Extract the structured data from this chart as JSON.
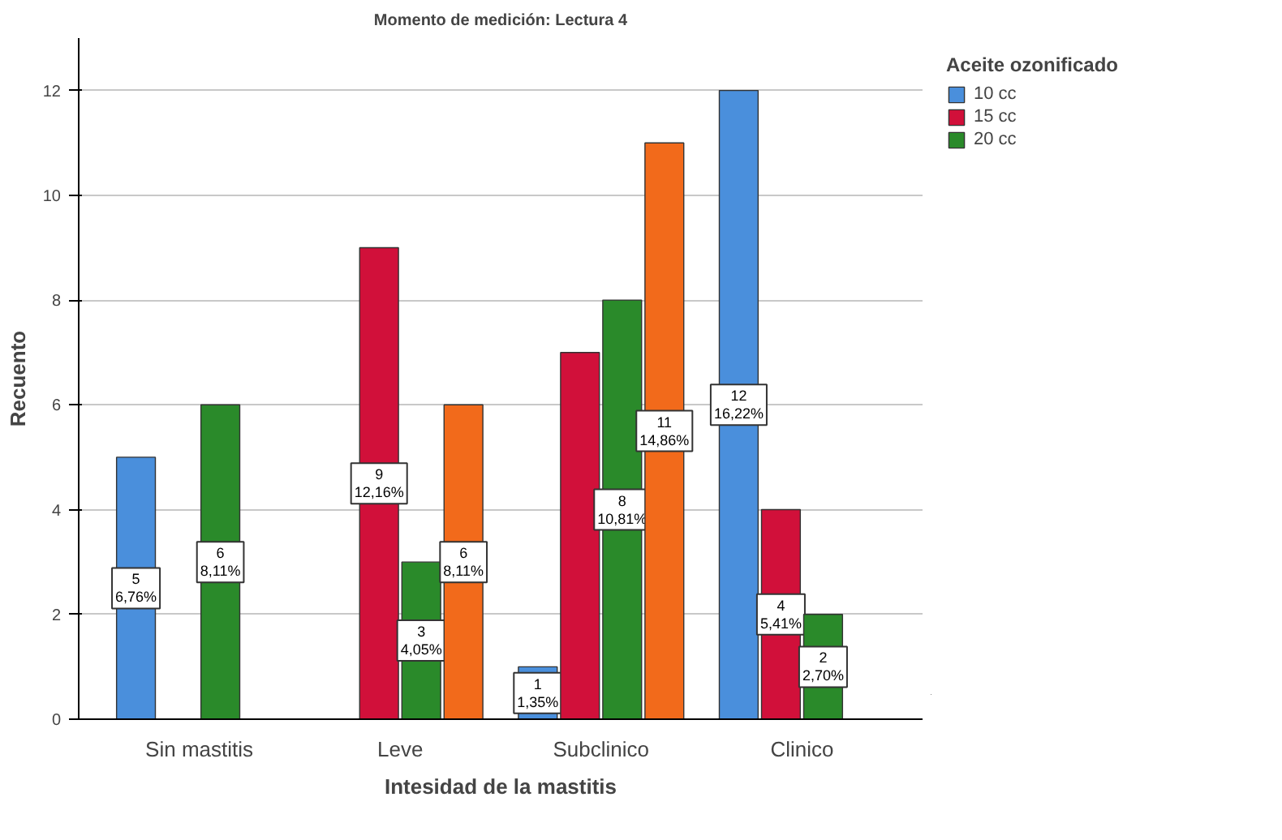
{
  "chart_data": {
    "type": "bar",
    "title": "Momento de medición: Lectura 4",
    "xlabel": "Intesidad de la mastitis",
    "ylabel": "Recuento",
    "legend_title": "Aceite ozonificado",
    "categories": [
      "Sin mastitis",
      "Leve",
      "Subclinico",
      "Clinico"
    ],
    "series": [
      {
        "name": "10 cc",
        "color": "#4a8fdc",
        "values": [
          5,
          null,
          1,
          12
        ],
        "value_labels": [
          "5\n6,76%",
          null,
          "1\n1,35%",
          "12\n16,22%"
        ]
      },
      {
        "name": "15 cc",
        "color": "#d1103a",
        "values": [
          null,
          9,
          7,
          4
        ],
        "value_labels": [
          null,
          "9\n12,16%",
          null,
          "4\n5,41%"
        ]
      },
      {
        "name": "20 cc",
        "color": "#2a8a2a",
        "values": [
          6,
          3,
          8,
          2
        ],
        "value_labels": [
          "6\n8,11%",
          "3\n4,05%",
          "8\n10,81%",
          "2\n2,70%"
        ]
      },
      {
        "color": "#f26a1b",
        "values": [
          null,
          6,
          11,
          null
        ],
        "value_labels": [
          null,
          "6\n8,11%",
          "11\n14,86%",
          null
        ]
      }
    ],
    "ylim": [
      0,
      13
    ],
    "yticks": [
      0,
      2,
      4,
      6,
      8,
      10,
      12
    ],
    "grid": "y",
    "legend": "right"
  }
}
